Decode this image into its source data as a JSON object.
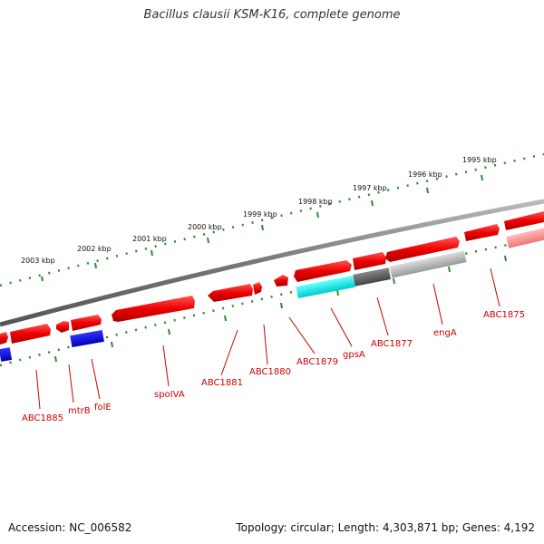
{
  "title": "Bacillus clausii KSM-K16, complete genome",
  "footer": {
    "accession": "Accession: NC_006582",
    "summary": "Topology: circular; Length: 4,303,871 bp; Genes: 4,192"
  },
  "scale_labels": [
    "2003 kbp",
    "2002 kbp",
    "2001 kbp",
    "2000 kbp",
    "1999 kbp",
    "1998 kbp",
    "1997 kbp",
    "1996 kbp",
    "1995 kbp"
  ],
  "gene_labels": [
    "ABC1885",
    "mtrB",
    "folE",
    "spoIVA",
    "ABC1881",
    "ABC1880",
    "ABC1879",
    "gpsA",
    "ABC1877",
    "engA",
    "ABC1875"
  ],
  "colors": {
    "gene_red": "#ee1111",
    "gene_blue": "#0000dd",
    "gene_cyan": "#00eeee",
    "gene_gray": "#666666",
    "gene_light_gray": "#bbbbbb",
    "gene_pink": "#ff9999",
    "backbone": "#888888",
    "tick_green": "#338833",
    "label_red": "#cc0000"
  }
}
